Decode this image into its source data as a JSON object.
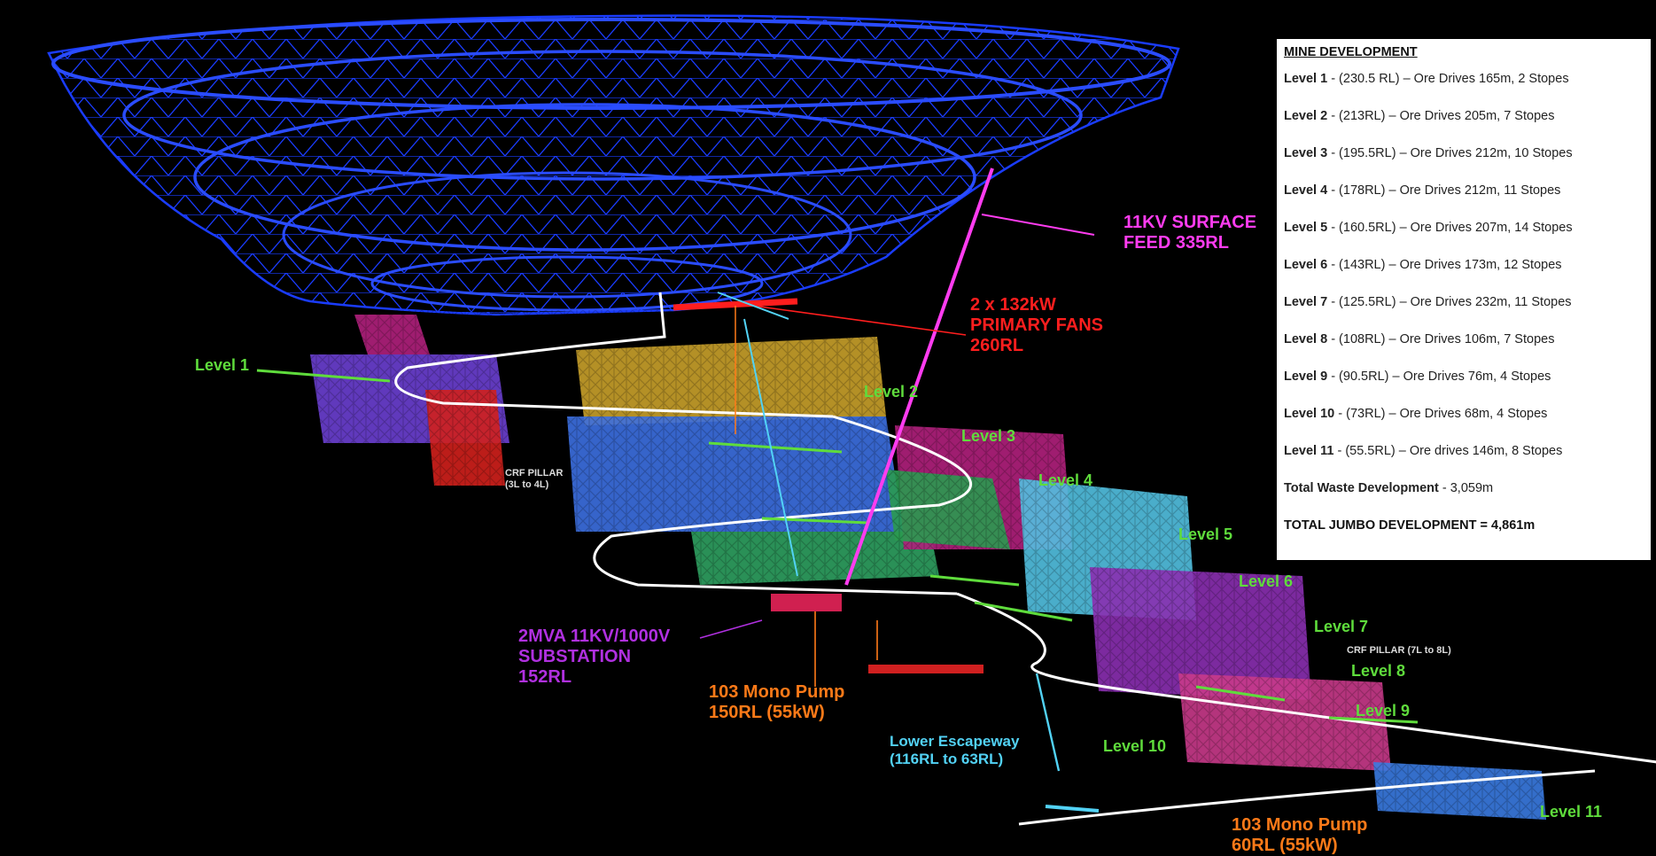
{
  "legend": {
    "title": "MINE DEVELOPMENT",
    "levels": [
      {
        "level": "Level 1",
        "detail": " - (230.5 RL) – Ore Drives 165m, 2 Stopes"
      },
      {
        "level": "Level 2",
        "detail": " - (213RL) – Ore Drives 205m, 7 Stopes"
      },
      {
        "level": "Level 3",
        "detail": " - (195.5RL) – Ore Drives 212m, 10 Stopes"
      },
      {
        "level": "Level 4",
        "detail": " - (178RL) – Ore Drives 212m, 11 Stopes"
      },
      {
        "level": "Level 5",
        "detail": " - (160.5RL) – Ore Drives 207m, 14 Stopes"
      },
      {
        "level": "Level 6",
        "detail": " - (143RL) – Ore Drives 173m, 12 Stopes"
      },
      {
        "level": "Level 7",
        "detail": " - (125.5RL) – Ore Drives 232m, 11 Stopes"
      },
      {
        "level": "Level 8",
        "detail": " - (108RL) – Ore Drives 106m, 7 Stopes"
      },
      {
        "level": "Level 9",
        "detail": " - (90.5RL) – Ore Drives 76m, 4 Stopes"
      },
      {
        "level": "Level 10",
        "detail": " - (73RL) – Ore Drives 68m, 4 Stopes"
      },
      {
        "level": "Level 11",
        "detail": " - (55.5RL) – Ore drives 146m, 8 Stopes"
      }
    ],
    "waste_label": "Total Waste Development",
    "waste_value": " - 3,059m",
    "total": "TOTAL JUMBO DEVELOPMENT = 4,861m"
  },
  "level_labels": [
    "Level 1",
    "Level 2",
    "Level 3",
    "Level 4",
    "Level 5",
    "Level 6",
    "Level 7",
    "Level 8",
    "Level 9",
    "Level 10",
    "Level 11"
  ],
  "annotations": {
    "surface_feed": [
      "11KV SURFACE",
      "FEED 335RL"
    ],
    "fans": [
      "2 x 132kW",
      "PRIMARY FANS",
      "260RL"
    ],
    "substation": [
      "2MVA 11KV/1000V",
      "SUBSTATION",
      "152RL"
    ],
    "pump_upper": [
      "103 Mono Pump",
      "150RL (55kW)"
    ],
    "pump_lower": [
      "103 Mono Pump",
      "60RL (55kW)"
    ],
    "escapeway": [
      "Lower Escapeway",
      "(116RL to 63RL)"
    ],
    "crf_pillar_upper": [
      "CRF PILLAR",
      "(3L to 4L)"
    ],
    "crf_pillar_lower": "CRF PILLAR (7L to 8L)"
  },
  "colors": {
    "background": "#000000",
    "pit": "#1a3cff",
    "decline": "#ffffff",
    "level_text": "#5fdc3c",
    "fans": "#ff1e1e",
    "surface_feed": "#ff3cf0",
    "substation": "#b030e0",
    "pump": "#ff7a18",
    "escapeway": "#52d2f5"
  }
}
